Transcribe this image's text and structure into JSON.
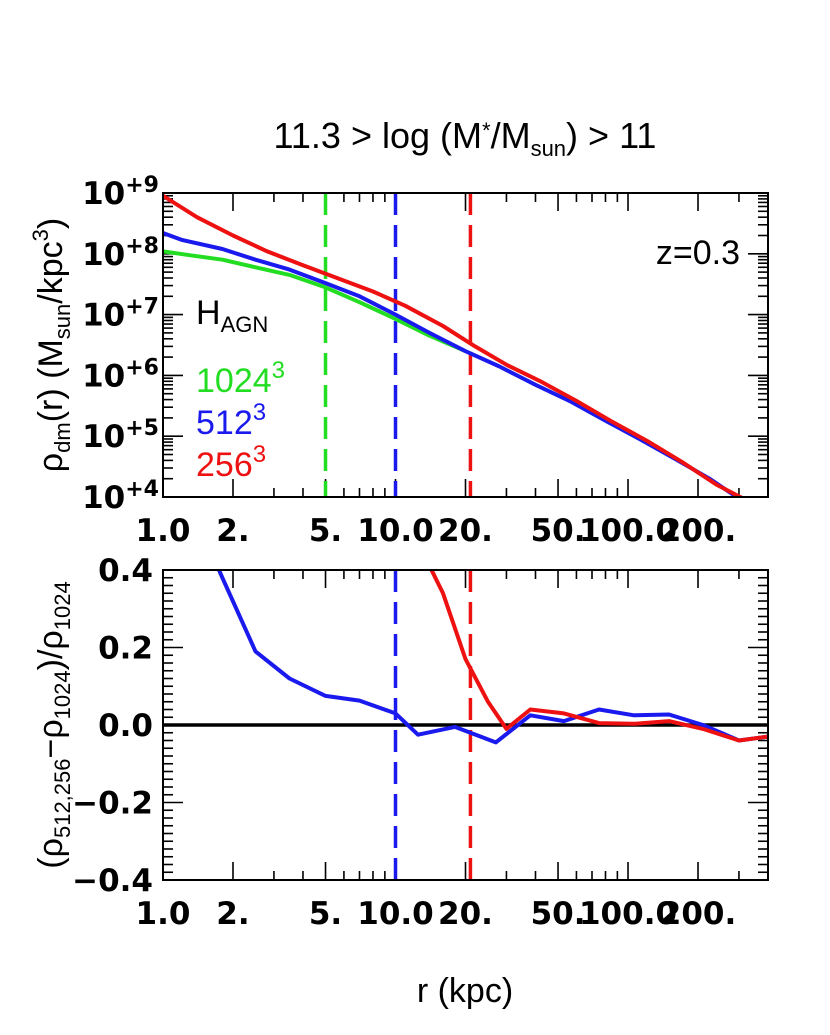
{
  "colors": {
    "n1024": "#22dd22",
    "n512": "#1a1aee",
    "n256": "#ee1111",
    "axis": "#000000"
  },
  "chart_data": [
    {
      "type": "line",
      "panel": "top",
      "title": "11.3 > log (M*/Msun) > 11",
      "title_main": "11.3 > log (M",
      "title_star": "*",
      "title_mid": "/M",
      "title_sub": "sun",
      "title_end": ") > 11",
      "ylabel": "ρdm(r) (Msun/kpc3)",
      "ylabel_rho": "ρ",
      "ylabel_dm": "dm",
      "ylabel_mid": "(r) (M",
      "ylabel_sun": "sun",
      "ylabel_kpc": "/kpc",
      "ylabel_3": "3",
      "ylabel_close": ")",
      "x_scale": "log",
      "y_scale": "log",
      "xlim": [
        1.0,
        400
      ],
      "ylim": [
        10000,
        1000000000
      ],
      "x_ticks": [
        1.0,
        2,
        5,
        10,
        20,
        50,
        100,
        200
      ],
      "x_tick_labels": [
        "1.0",
        "2.",
        "5.",
        "10.0",
        "20.",
        "50.",
        "100.0",
        "200."
      ],
      "y_ticks": [
        10000,
        100000,
        1000000,
        10000000,
        100000000,
        1000000000
      ],
      "y_tick_labels": [
        {
          "base": "10",
          "exp": "+4"
        },
        {
          "base": "10",
          "exp": "+5"
        },
        {
          "base": "10",
          "exp": "+6"
        },
        {
          "base": "10",
          "exp": "+7"
        },
        {
          "base": "10",
          "exp": "+8"
        },
        {
          "base": "10",
          "exp": "+9"
        }
      ],
      "vlines": [
        {
          "x": 5,
          "series": "1024"
        },
        {
          "x": 10,
          "series": "512"
        },
        {
          "x": 21,
          "series": "256"
        }
      ],
      "annotation": "z=0.3",
      "legend_title": "H",
      "legend_title_sub": "AGN",
      "legend": [
        {
          "base": "1024",
          "sup": "3",
          "series": "1024"
        },
        {
          "base": "512",
          "sup": "3",
          "series": "512"
        },
        {
          "base": "256",
          "sup": "3",
          "series": "256"
        }
      ],
      "series": [
        {
          "key": "1024",
          "x": [
            1.0,
            1.3,
            1.8,
            2.5,
            3.5,
            5,
            7,
            10,
            14,
            20
          ],
          "y": [
            110000000,
            95000000,
            80000000,
            60000000,
            45000000,
            28000000,
            16000000,
            8500000,
            4500000,
            2500000
          ]
        },
        {
          "key": "512",
          "x": [
            1.0,
            1.2,
            1.8,
            2.5,
            3.5,
            5,
            7,
            10,
            14,
            20,
            28,
            40,
            56,
            80,
            112,
            160,
            224,
            320
          ],
          "y": [
            220000000,
            170000000,
            120000000,
            80000000,
            55000000,
            33000000,
            20000000,
            10000000,
            5000000,
            2500000,
            1400000,
            700000,
            380000,
            180000,
            90000,
            42000,
            20000,
            8000
          ]
        },
        {
          "key": "256",
          "x": [
            1.0,
            1.4,
            2.0,
            2.8,
            4.0,
            5.6,
            8,
            11,
            16,
            22,
            30,
            42,
            60,
            84,
            120,
            170,
            240,
            340
          ],
          "y": [
            900000000,
            400000000,
            200000000,
            110000000,
            65000000,
            40000000,
            24000000,
            14000000,
            6500000,
            3000000,
            1500000,
            800000,
            380000,
            180000,
            85000,
            38000,
            16000,
            8000
          ]
        }
      ]
    },
    {
      "type": "line",
      "panel": "bottom",
      "ylabel": "(ρ512,256−ρ1024)/ρ1024",
      "ylabel_p1": "(ρ",
      "ylabel_s1": "512,256",
      "ylabel_p2": "−ρ",
      "ylabel_s2": "1024",
      "ylabel_p3": ")/ρ",
      "ylabel_s3": "1024",
      "xlabel": "r (kpc)",
      "x_scale": "log",
      "xlim": [
        1.0,
        400
      ],
      "ylim": [
        -0.4,
        0.4
      ],
      "y_ticks": [
        -0.4,
        -0.2,
        0.0,
        0.2,
        0.4
      ],
      "y_tick_labels": [
        "−0.4",
        "−0.2",
        "0.0",
        "0.2",
        "0.4"
      ],
      "x_ticks": [
        1.0,
        2,
        5,
        10,
        20,
        50,
        100,
        200
      ],
      "x_tick_labels": [
        "1.0",
        "2.",
        "5.",
        "10.0",
        "20.",
        "50.",
        "100.0",
        "200."
      ],
      "hline": 0.0,
      "vlines": [
        {
          "x": 10,
          "series": "512"
        },
        {
          "x": 21,
          "series": "256"
        }
      ],
      "series": [
        {
          "key": "512",
          "x": [
            1.6,
            1.8,
            2.5,
            3.5,
            5,
            7,
            10,
            12.5,
            18,
            27,
            38,
            53,
            75,
            106,
            150,
            210,
            300,
            400
          ],
          "y": [
            0.45,
            0.38,
            0.19,
            0.12,
            0.075,
            0.063,
            0.03,
            -0.025,
            -0.005,
            -0.045,
            0.025,
            0.01,
            0.04,
            0.025,
            0.027,
            0.0,
            -0.04,
            -0.03
          ]
        },
        {
          "key": "256",
          "x": [
            13,
            16,
            20,
            25,
            30,
            38,
            53,
            75,
            106,
            150,
            210,
            300,
            400
          ],
          "y": [
            0.45,
            0.34,
            0.17,
            0.06,
            -0.01,
            0.04,
            0.03,
            0.005,
            0.003,
            0.01,
            -0.01,
            -0.04,
            -0.03
          ]
        }
      ]
    }
  ]
}
